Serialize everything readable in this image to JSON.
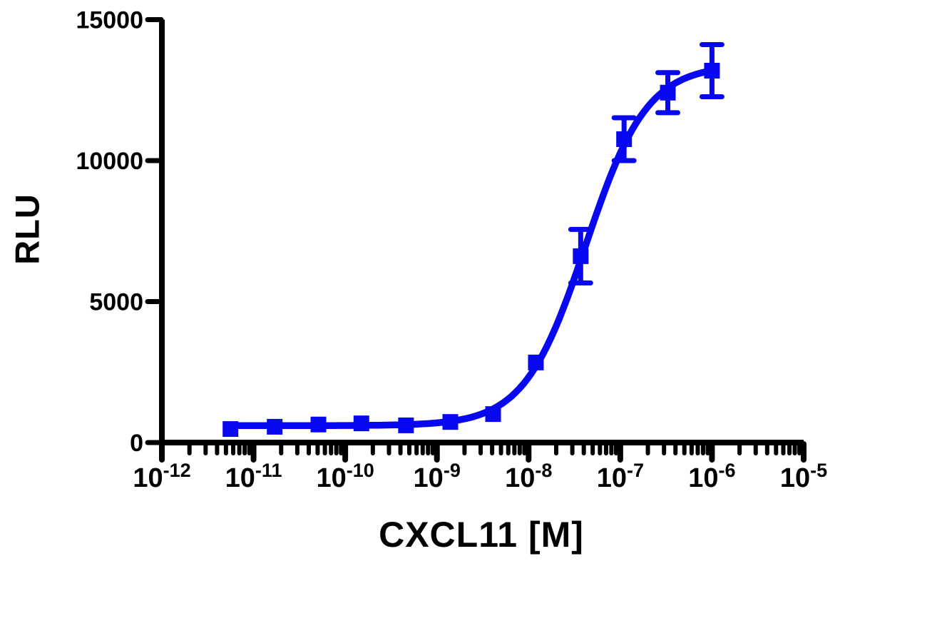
{
  "chart_data": {
    "type": "scatter",
    "title": "",
    "xlabel": "CXCL11 [M]",
    "ylabel": "RLU",
    "x_scale": "log10",
    "x_tick_exponents": [
      -12,
      -11,
      -10,
      -9,
      -8,
      -7,
      -6,
      -5
    ],
    "x_tick_base": "10",
    "xlim_exponents": [
      -12,
      -5
    ],
    "ylim": [
      0,
      15000
    ],
    "y_ticks": [
      0,
      5000,
      10000,
      15000
    ],
    "grid": "off",
    "legend": "none",
    "series": [
      {
        "name": "CXCL11",
        "color": "#0808f0",
        "marker": "square",
        "marker_size_px": 22,
        "x_molar": [
          5.6e-12,
          1.7e-11,
          5.1e-11,
          1.5e-10,
          4.6e-10,
          1.4e-09,
          4.1e-09,
          1.2e-08,
          3.7e-08,
          1.1e-07,
          3.3e-07,
          1e-06
        ],
        "y_rlu": [
          480,
          560,
          640,
          680,
          610,
          730,
          1010,
          2840,
          6610,
          10760,
          12410,
          13190
        ],
        "y_err": [
          0,
          0,
          0,
          0,
          0,
          0,
          0,
          0,
          950,
          760,
          710,
          925
        ]
      }
    ],
    "fit_curve": {
      "model": "4PL",
      "bottom": 600,
      "top": 13400,
      "ec50_molar": 4.2e-08,
      "hill": 1.3,
      "x_start_molar": 5.6e-12,
      "x_end_molar": 1e-06
    },
    "axis_color": "#000000"
  }
}
